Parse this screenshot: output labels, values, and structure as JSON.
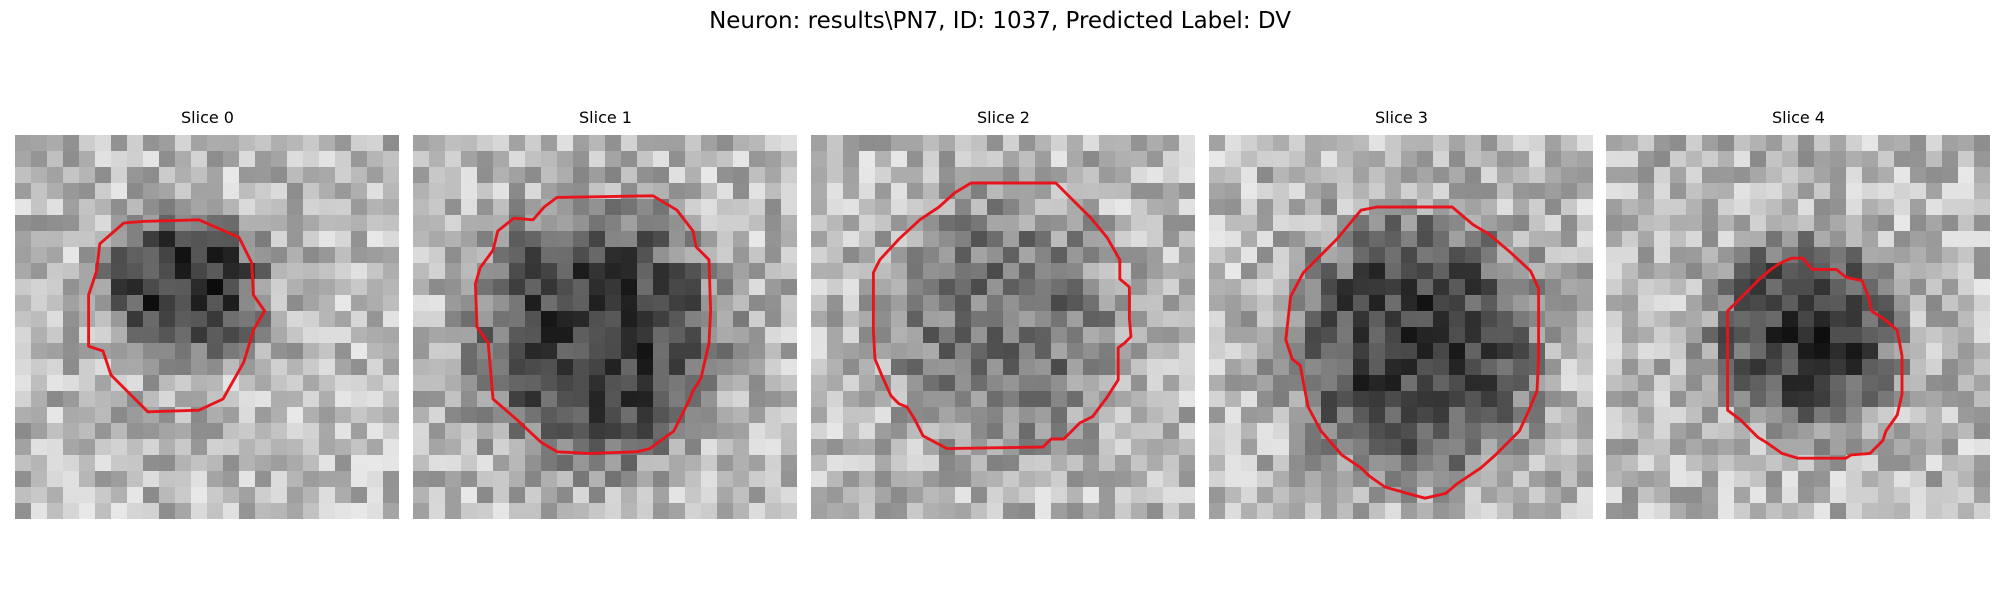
{
  "figure": {
    "title": "Neuron: results\\PN7, ID: 1037, Predicted Label: DV"
  },
  "colors": {
    "contour": "#e8141c",
    "background": "#ffffff"
  },
  "image_grid": {
    "rows": 24,
    "cols": 24,
    "colormap": "gray"
  },
  "slices": [
    {
      "title": "Slice 0",
      "seed": 11,
      "blob": {
        "cx": 10.5,
        "cy": 9.5,
        "rx": 5.2,
        "ry": 4.8,
        "depth": 130
      },
      "contour": [
        [
          8,
          5.4
        ],
        [
          11.5,
          5.3
        ],
        [
          14,
          6.4
        ],
        [
          14.8,
          8
        ],
        [
          14.9,
          10
        ],
        [
          15.6,
          11
        ],
        [
          14.9,
          12.2
        ],
        [
          14.3,
          14.2
        ],
        [
          13,
          16.5
        ],
        [
          11.5,
          17.2
        ],
        [
          8.3,
          17.3
        ],
        [
          6,
          15
        ],
        [
          5.5,
          13.5
        ],
        [
          4.6,
          13.2
        ],
        [
          4.6,
          10
        ],
        [
          5.1,
          8.5
        ],
        [
          5.3,
          6.8
        ],
        [
          6.8,
          5.5
        ]
      ]
    },
    {
      "title": "Slice 1",
      "seed": 23,
      "blob": {
        "cx": 11.5,
        "cy": 12.5,
        "rx": 7.8,
        "ry": 8.2,
        "depth": 120
      },
      "contour": [
        [
          8.2,
          4.5
        ],
        [
          9,
          3.9
        ],
        [
          15,
          3.8
        ],
        [
          16.5,
          4.7
        ],
        [
          17.5,
          6
        ],
        [
          17.7,
          7
        ],
        [
          18.5,
          7.8
        ],
        [
          18.6,
          11
        ],
        [
          18.5,
          13
        ],
        [
          18,
          15.2
        ],
        [
          17.5,
          16
        ],
        [
          17.3,
          16.5
        ],
        [
          16.3,
          18.5
        ],
        [
          14.8,
          19.6
        ],
        [
          14,
          19.8
        ],
        [
          11,
          19.9
        ],
        [
          9,
          19.8
        ],
        [
          8,
          19.2
        ],
        [
          6.5,
          17.8
        ],
        [
          5,
          16.5
        ],
        [
          4.7,
          13
        ],
        [
          4,
          12
        ],
        [
          3.9,
          9.3
        ],
        [
          4.2,
          8.3
        ],
        [
          5,
          7.2
        ],
        [
          5.3,
          6
        ],
        [
          6.3,
          5.2
        ],
        [
          7.5,
          5.3
        ]
      ]
    },
    {
      "title": "Slice 2",
      "seed": 37,
      "blob": {
        "cx": 12,
        "cy": 11.8,
        "rx": 7.5,
        "ry": 7.8,
        "depth": 70
      },
      "contour": [
        [
          9,
          3.6
        ],
        [
          10,
          3
        ],
        [
          15.3,
          3
        ],
        [
          16.5,
          4.2
        ],
        [
          17.5,
          5.2
        ],
        [
          18.5,
          6.4
        ],
        [
          19.3,
          7.8
        ],
        [
          19.3,
          9
        ],
        [
          19.9,
          9.5
        ],
        [
          19.9,
          11.5
        ],
        [
          20,
          12.6
        ],
        [
          19.6,
          13
        ],
        [
          19.2,
          13.3
        ],
        [
          19.2,
          15.3
        ],
        [
          18.5,
          16.4
        ],
        [
          17.6,
          17.6
        ],
        [
          16.8,
          18
        ],
        [
          15.8,
          19
        ],
        [
          15,
          19
        ],
        [
          14.5,
          19.5
        ],
        [
          8.5,
          19.6
        ],
        [
          7,
          18.8
        ],
        [
          6.5,
          17.8
        ],
        [
          6,
          17
        ],
        [
          5.5,
          16.8
        ],
        [
          5,
          16.3
        ],
        [
          4.5,
          15.2
        ],
        [
          4,
          14
        ],
        [
          3.9,
          12.3
        ],
        [
          3.9,
          8.6
        ],
        [
          4.3,
          7.8
        ],
        [
          5.5,
          6.5
        ],
        [
          6.8,
          5.3
        ],
        [
          8,
          4.5
        ]
      ]
    },
    {
      "title": "Slice 3",
      "seed": 51,
      "blob": {
        "cx": 12.8,
        "cy": 13.2,
        "rx": 7.8,
        "ry": 8.3,
        "depth": 120
      },
      "contour": [
        [
          9.5,
          4.7
        ],
        [
          10.5,
          4.5
        ],
        [
          15.2,
          4.5
        ],
        [
          16.5,
          5.6
        ],
        [
          17.5,
          6.2
        ],
        [
          18.8,
          7.3
        ],
        [
          20.1,
          8.5
        ],
        [
          20.6,
          9.6
        ],
        [
          20.6,
          14
        ],
        [
          20.5,
          16
        ],
        [
          20,
          17.2
        ],
        [
          19.4,
          18.5
        ],
        [
          17.9,
          20
        ],
        [
          17,
          20.8
        ],
        [
          15.5,
          21.8
        ],
        [
          14.8,
          22.4
        ],
        [
          13.5,
          22.7
        ],
        [
          12.4,
          22.4
        ],
        [
          11,
          22
        ],
        [
          10,
          21.3
        ],
        [
          9.5,
          20.8
        ],
        [
          8.3,
          20
        ],
        [
          7,
          18.5
        ],
        [
          6.2,
          17
        ],
        [
          6,
          16
        ],
        [
          5.7,
          14.4
        ],
        [
          5.2,
          14
        ],
        [
          4.8,
          12.8
        ],
        [
          5.1,
          10.1
        ],
        [
          5.9,
          8.6
        ],
        [
          6.7,
          7.8
        ],
        [
          8,
          6.5
        ]
      ]
    },
    {
      "title": "Slice 4",
      "seed": 67,
      "blob": {
        "cx": 12.5,
        "cy": 12.2,
        "rx": 5.8,
        "ry": 6.2,
        "depth": 125
      },
      "contour": [
        [
          10.9,
          8
        ],
        [
          11.6,
          7.7
        ],
        [
          12.3,
          7.7
        ],
        [
          12.9,
          8.4
        ],
        [
          14.4,
          8.4
        ],
        [
          15,
          8.9
        ],
        [
          16,
          9.1
        ],
        [
          16.4,
          10.1
        ],
        [
          16.6,
          11
        ],
        [
          17.5,
          11.6
        ],
        [
          18.2,
          12.2
        ],
        [
          18.5,
          13.8
        ],
        [
          18.5,
          16.2
        ],
        [
          18.2,
          17.5
        ],
        [
          17.5,
          18.5
        ],
        [
          17.3,
          19.1
        ],
        [
          16.5,
          19.9
        ],
        [
          15.3,
          20
        ],
        [
          15,
          20.2
        ],
        [
          12,
          20.2
        ],
        [
          11,
          19.9
        ],
        [
          10,
          19.2
        ],
        [
          9.5,
          18.9
        ],
        [
          8.4,
          17.8
        ],
        [
          7.6,
          17.2
        ],
        [
          7.6,
          11
        ],
        [
          8.6,
          10
        ],
        [
          9.6,
          9
        ],
        [
          10.3,
          8.4
        ]
      ]
    }
  ]
}
